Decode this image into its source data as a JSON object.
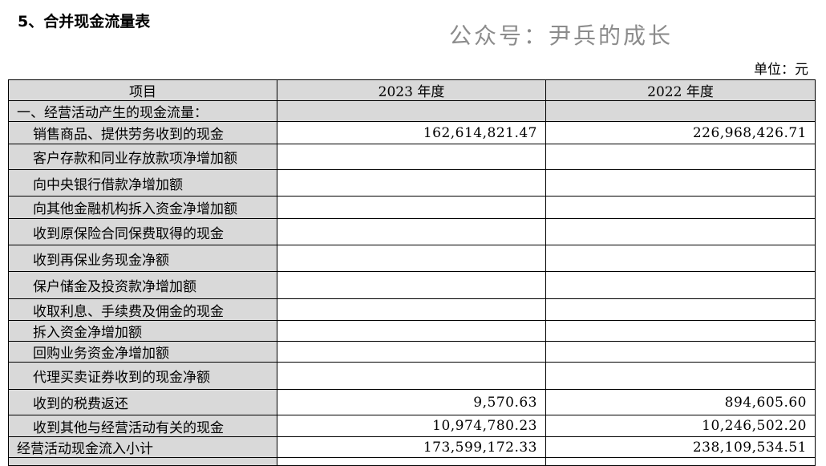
{
  "title": "5、合并现金流量表",
  "unit": "单位：元",
  "headers": [
    "项目",
    "2023 年度",
    "2022 年度"
  ],
  "section": "一、经营活动产生的现金流量：",
  "rows": [
    {
      "label": "销售商品、提供劳务收到的现金",
      "y2023": "162,614,821.47",
      "y2022": "226,968,426.71"
    },
    {
      "label": "客户存款和同业存放款项净增加额",
      "y2023": "",
      "y2022": ""
    },
    {
      "label": "向中央银行借款净增加额",
      "y2023": "",
      "y2022": ""
    },
    {
      "label": "向其他金融机构拆入资金净增加额",
      "y2023": "",
      "y2022": ""
    },
    {
      "label": "收到原保险合同保费取得的现金",
      "y2023": "",
      "y2022": ""
    },
    {
      "label": "收到再保业务现金净额",
      "y2023": "",
      "y2022": ""
    },
    {
      "label": "保户储金及投资款净增加额",
      "y2023": "",
      "y2022": ""
    },
    {
      "label": "收取利息、手续费及佣金的现金",
      "y2023": "",
      "y2022": ""
    },
    {
      "label": "拆入资金净增加额",
      "y2023": "",
      "y2022": ""
    },
    {
      "label": "回购业务资金净增加额",
      "y2023": "",
      "y2022": ""
    },
    {
      "label": "代理买卖证券收到的现金净额",
      "y2023": "",
      "y2022": ""
    },
    {
      "label": "收到的税费返还",
      "y2023": "9,570.63",
      "y2022": "894,605.60"
    },
    {
      "label": "收到其他与经营活动有关的现金",
      "y2023": "10,974,780.23",
      "y2022": "10,246,502.20"
    }
  ],
  "subtotal": {
    "label": "经营活动现金流入小计",
    "y2023": "173,599,172.33",
    "y2022": "238,109,534.51"
  },
  "watermark": "公众号：尹兵的成长"
}
